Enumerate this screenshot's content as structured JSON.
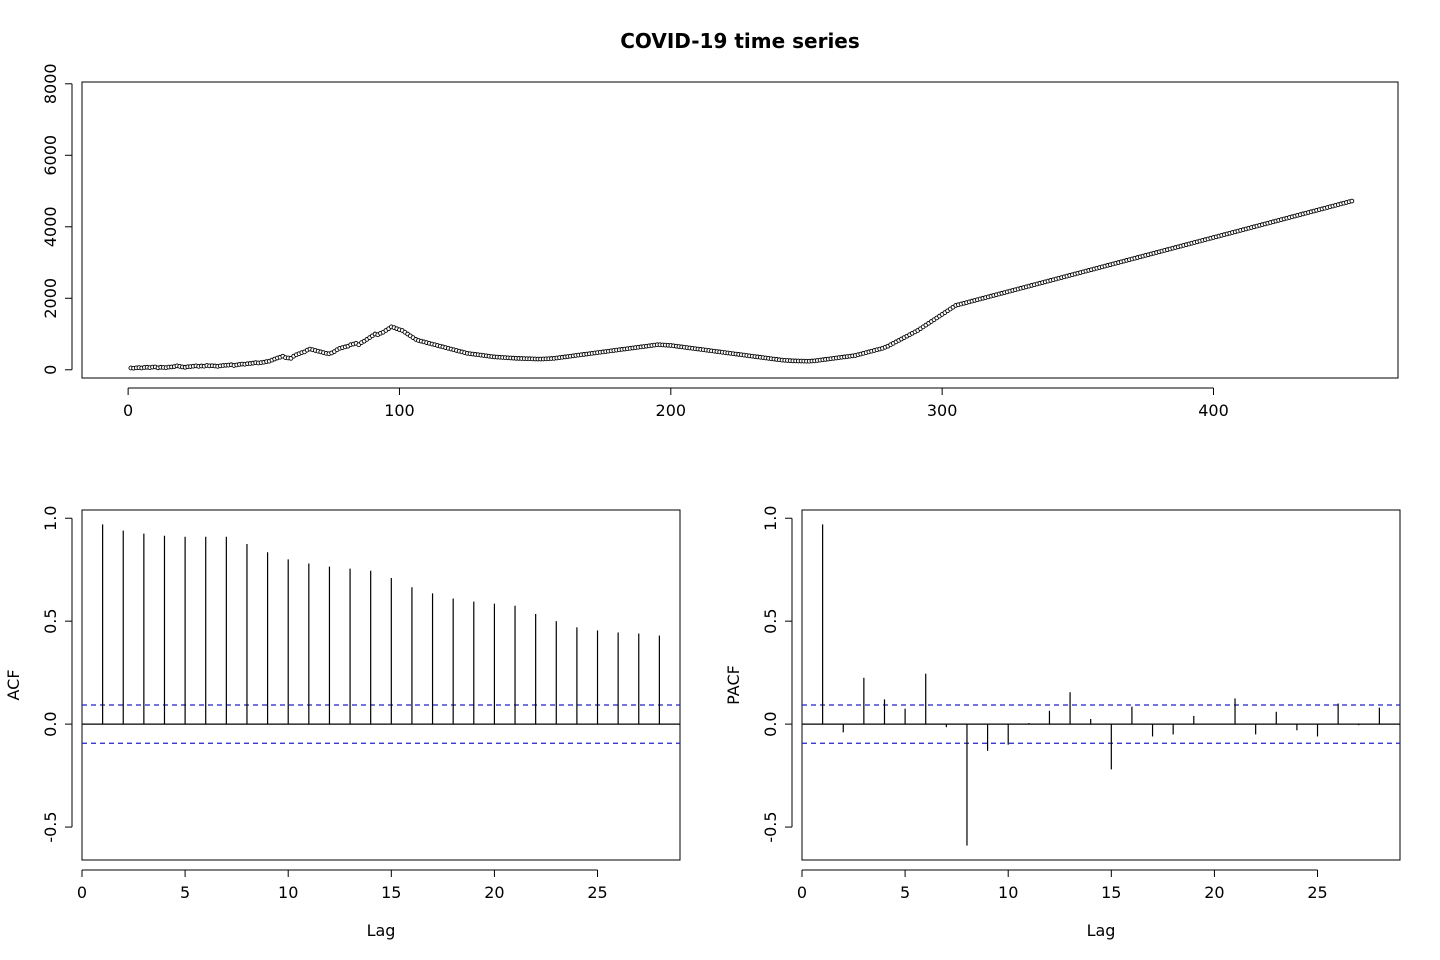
{
  "chart_data": [
    {
      "type": "line",
      "title": "COVID-19 time series",
      "xlabel": "",
      "ylabel": "",
      "xlim": [
        -17,
        468
      ],
      "ylim": [
        -230,
        8050
      ],
      "xticks": [
        0,
        100,
        200,
        300,
        400
      ],
      "yticks": [
        0,
        2000,
        4000,
        6000,
        8000
      ],
      "markers": "open-circle",
      "grid": false,
      "x_start": 1,
      "x_step": 1,
      "values": [
        50,
        45,
        55,
        60,
        50,
        65,
        70,
        60,
        75,
        80,
        55,
        70,
        65,
        60,
        75,
        80,
        90,
        110,
        95,
        80,
        70,
        85,
        90,
        100,
        110,
        95,
        105,
        100,
        120,
        110,
        115,
        105,
        95,
        110,
        120,
        125,
        130,
        140,
        120,
        135,
        150,
        160,
        155,
        170,
        175,
        185,
        200,
        190,
        200,
        210,
        230,
        240,
        270,
        300,
        330,
        350,
        380,
        340,
        330,
        320,
        380,
        420,
        450,
        480,
        500,
        550,
        580,
        560,
        540,
        520,
        500,
        480,
        460,
        450,
        470,
        510,
        560,
        600,
        620,
        640,
        660,
        700,
        720,
        740,
        700,
        760,
        800,
        850,
        900,
        950,
        1000,
        980,
        1020,
        1050,
        1100,
        1150,
        1200,
        1180,
        1150,
        1120,
        1100,
        1050,
        1000,
        950,
        900,
        850,
        820,
        800,
        780,
        760,
        740,
        720,
        700,
        680,
        660,
        640,
        620,
        600,
        580,
        560,
        540,
        520,
        500,
        480,
        460,
        450,
        440,
        430,
        420,
        410,
        400,
        390,
        380,
        370,
        360,
        355,
        350,
        345,
        340,
        335,
        330,
        325,
        320,
        318,
        315,
        312,
        310,
        308,
        305,
        302,
        300,
        300,
        302,
        305,
        310,
        315,
        320,
        330,
        340,
        350,
        360,
        370,
        380,
        390,
        400,
        410,
        420,
        430,
        440,
        450,
        460,
        470,
        480,
        490,
        500,
        510,
        520,
        530,
        540,
        550,
        560,
        570,
        580,
        590,
        600,
        610,
        620,
        630,
        640,
        650,
        660,
        670,
        680,
        690,
        700,
        700,
        695,
        690,
        685,
        680,
        670,
        660,
        650,
        640,
        630,
        620,
        610,
        600,
        590,
        580,
        570,
        560,
        550,
        540,
        530,
        520,
        510,
        500,
        490,
        480,
        470,
        460,
        450,
        440,
        430,
        420,
        410,
        400,
        390,
        380,
        370,
        360,
        350,
        340,
        330,
        320,
        310,
        300,
        290,
        280,
        270,
        265,
        260,
        255,
        250,
        248,
        246,
        244,
        242,
        240,
        240,
        245,
        250,
        260,
        270,
        280,
        290,
        300,
        310,
        320,
        330,
        340,
        350,
        360,
        370,
        380,
        390,
        400,
        420,
        440,
        460,
        480,
        500,
        520,
        540,
        560,
        580,
        600,
        630,
        660,
        700,
        740,
        780,
        820,
        860,
        900,
        940,
        980,
        1020,
        1060,
        1100,
        1150,
        1200,
        1250,
        1300,
        1350,
        1400,
        1450,
        1500,
        1550,
        1600,
        1650,
        1700,
        1750,
        1800,
        1820,
        1840,
        1860,
        1880,
        1900,
        1920,
        1940,
        1960,
        1980,
        2000,
        2020,
        2040,
        2060,
        2080,
        2100,
        2120,
        2140,
        2160,
        2180,
        2200,
        2220,
        2240,
        2260,
        2280,
        2300,
        2320,
        2340,
        2360,
        2380,
        2400,
        2420,
        2440,
        2460,
        2480,
        2500,
        2520,
        2540,
        2560,
        2580,
        2600,
        2620,
        2640,
        2660,
        2680,
        2700,
        2720,
        2740,
        2760,
        2780,
        2800,
        2820,
        2840,
        2860,
        2880,
        2900,
        2920,
        2940,
        2960,
        2980,
        3000,
        3020,
        3040,
        3060,
        3080,
        3100,
        3120,
        3140,
        3160,
        3180,
        3200,
        3220,
        3240,
        3260,
        3280,
        3300,
        3320,
        3340,
        3360,
        3380,
        3400,
        3420,
        3440,
        3460,
        3480,
        3500,
        3520,
        3540,
        3560,
        3580,
        3600,
        3620,
        3640,
        3660,
        3680,
        3700,
        3720,
        3740,
        3760,
        3780,
        3800,
        3820,
        3840,
        3860,
        3880,
        3900,
        3920,
        3940,
        3960,
        3980,
        4000,
        4020,
        4040,
        4060,
        4080,
        4100,
        4120,
        4140,
        4160,
        4180,
        4200,
        4220,
        4240,
        4260,
        4280,
        4300,
        4320,
        4340,
        4360,
        4380,
        4400,
        4420,
        4440,
        4460,
        4480,
        4500,
        4520,
        4540,
        4560,
        4580,
        4600,
        4620,
        4640,
        4660,
        4680,
        4700,
        4720
      ]
    },
    {
      "type": "bar",
      "xlabel": "Lag",
      "ylabel": "ACF",
      "xlim": [
        0,
        29
      ],
      "ylim": [
        -0.66,
        1.04
      ],
      "xticks": [
        0,
        5,
        10,
        15,
        20,
        25
      ],
      "yticks": [
        -0.5,
        0.0,
        0.5,
        1.0
      ],
      "ci": 0.093,
      "lags": [
        1,
        2,
        3,
        4,
        5,
        6,
        7,
        8,
        9,
        10,
        11,
        12,
        13,
        14,
        15,
        16,
        17,
        18,
        19,
        20,
        21,
        22,
        23,
        24,
        25,
        26,
        27,
        28
      ],
      "values": [
        0.97,
        0.94,
        0.925,
        0.915,
        0.91,
        0.91,
        0.91,
        0.875,
        0.835,
        0.8,
        0.78,
        0.765,
        0.755,
        0.745,
        0.71,
        0.665,
        0.635,
        0.61,
        0.595,
        0.585,
        0.575,
        0.535,
        0.5,
        0.47,
        0.455,
        0.445,
        0.44,
        0.43
      ],
      "grid": false
    },
    {
      "type": "bar",
      "xlabel": "Lag",
      "ylabel": "PACF",
      "xlim": [
        0,
        29
      ],
      "ylim": [
        -0.66,
        1.04
      ],
      "xticks": [
        0,
        5,
        10,
        15,
        20,
        25
      ],
      "yticks": [
        -0.5,
        0.0,
        0.5,
        1.0
      ],
      "ci": 0.093,
      "lags": [
        1,
        2,
        3,
        4,
        5,
        6,
        7,
        8,
        9,
        10,
        11,
        12,
        13,
        14,
        15,
        16,
        17,
        18,
        19,
        20,
        21,
        22,
        23,
        24,
        25,
        26,
        27,
        28
      ],
      "values": [
        0.97,
        -0.04,
        0.225,
        0.12,
        0.075,
        0.245,
        -0.015,
        -0.59,
        -0.13,
        -0.1,
        0.005,
        0.065,
        0.155,
        0.025,
        -0.22,
        0.085,
        -0.06,
        -0.05,
        0.04,
        0.0,
        0.125,
        -0.05,
        0.06,
        -0.03,
        -0.06,
        0.1,
        -0.005,
        0.08
      ],
      "grid": false
    }
  ],
  "colors": {
    "ink": "#000000",
    "ci_line": "#2222cc"
  }
}
